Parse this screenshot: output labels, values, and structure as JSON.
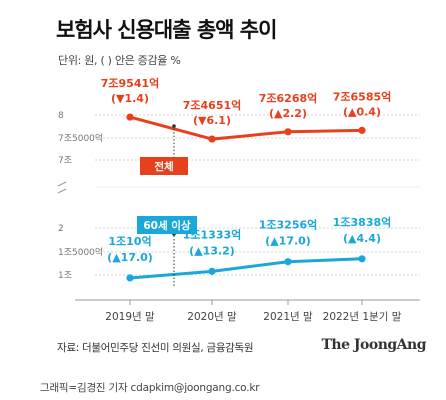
{
  "title": "보험사 신용대출 총액 추이",
  "unit_note": "단위: 원, ( ) 안은 증감율 %",
  "source": "자료: 더불어민주당 진선미 의원실, 금융감독원",
  "brand": "The JoongAng",
  "credit": "그래픽=김경진 기자 cdapkim@joongang.co.kr",
  "colors": {
    "total": "#e8401c",
    "age60": "#19a8d8"
  },
  "chart_data": [
    {
      "type": "line",
      "name": "전체",
      "categories": [
        "2019년 말",
        "2020년 말",
        "2021년 말",
        "2022년 1분기 말"
      ],
      "values": [
        7.9541,
        7.4651,
        7.6268,
        7.6585
      ],
      "value_labels": [
        "7조9541억",
        "7조4651억",
        "7조6268억",
        "7조6585억"
      ],
      "change_labels": [
        "(▼1.4)",
        "(▼6.1)",
        "(▲2.2)",
        "(▲0.4)"
      ],
      "y_ticks": [
        {
          "value": 8.0,
          "label": "8"
        },
        {
          "value": 7.5,
          "label": "7조5000억"
        },
        {
          "value": 7.0,
          "label": "7조"
        }
      ],
      "ylim": [
        7.0,
        8.0
      ],
      "series_label": "전체"
    },
    {
      "type": "line",
      "name": "60세 이상",
      "categories": [
        "2019년 말",
        "2020년 말",
        "2021년 말",
        "2022년 1분기 말"
      ],
      "values": [
        1.001,
        1.1333,
        1.3256,
        1.3838
      ],
      "value_labels": [
        "1조10억",
        "1조1333억",
        "1조3256억",
        "1조3838억"
      ],
      "change_labels": [
        "(▲17.0)",
        "(▲13.2)",
        "(▲17.0)",
        "(▲4.4)"
      ],
      "y_ticks": [
        {
          "value": 2.0,
          "label": "2"
        },
        {
          "value": 1.5,
          "label": "1조5000억"
        },
        {
          "value": 1.0,
          "label": "1조"
        }
      ],
      "ylim": [
        1.0,
        2.0
      ],
      "series_label": "60세 이상"
    }
  ]
}
